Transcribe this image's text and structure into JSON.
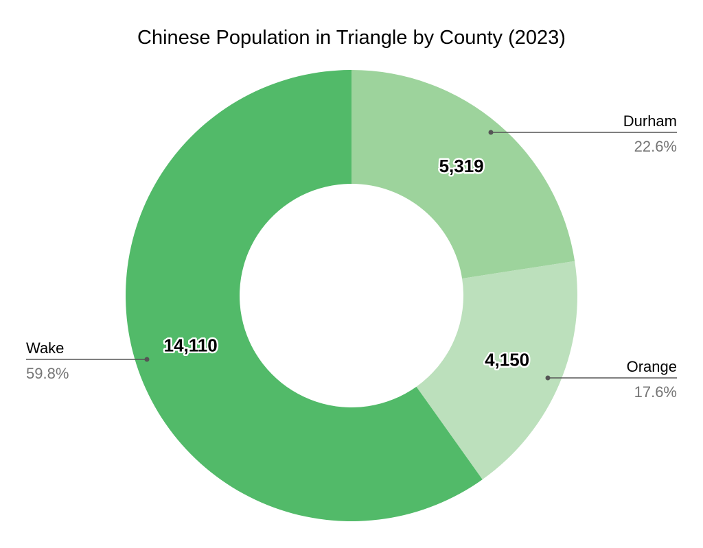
{
  "chart_data": {
    "type": "pie",
    "variant": "donut",
    "title": "Chinese Population in Triangle by County (2023)",
    "slices": [
      {
        "name": "Durham",
        "value": 5319,
        "value_label": "5,319",
        "percent_label": "22.6%",
        "color": "#9dd39c"
      },
      {
        "name": "Orange",
        "value": 4150,
        "value_label": "4,150",
        "percent_label": "17.6%",
        "color": "#bce0bc"
      },
      {
        "name": "Wake",
        "value": 14110,
        "value_label": "14,110",
        "percent_label": "59.8%",
        "color": "#52ba69"
      }
    ],
    "legend": "external-labels"
  }
}
